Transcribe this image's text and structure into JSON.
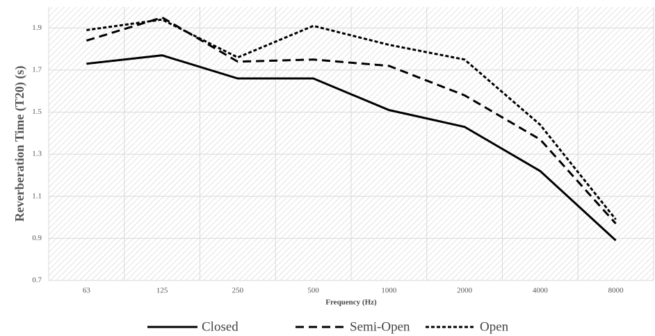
{
  "chart_data": {
    "type": "line",
    "x_label": "Frequency (Hz)",
    "y_label": "Reverberation Time (T20) (s)",
    "categories": [
      "63",
      "125",
      "250",
      "500",
      "1000",
      "2000",
      "4000",
      "8000"
    ],
    "series": [
      {
        "name": "Closed",
        "color": "#000000",
        "dash": "solid",
        "values": [
          1.73,
          1.77,
          1.66,
          1.66,
          1.51,
          1.43,
          1.22,
          0.89
        ]
      },
      {
        "name": "Semi-Open",
        "color": "#000000",
        "dash": "long",
        "values": [
          1.84,
          1.95,
          1.74,
          1.75,
          1.72,
          1.58,
          1.37,
          0.97
        ]
      },
      {
        "name": "Open",
        "color": "#000000",
        "dash": "short",
        "values": [
          1.89,
          1.94,
          1.76,
          1.91,
          1.82,
          1.75,
          1.44,
          0.99
        ]
      }
    ],
    "ylim": [
      0.7,
      2.0
    ],
    "yticks": [
      0.7,
      0.9,
      1.1,
      1.3,
      1.5,
      1.7,
      1.9
    ],
    "grid": true,
    "legend": "bottom"
  }
}
